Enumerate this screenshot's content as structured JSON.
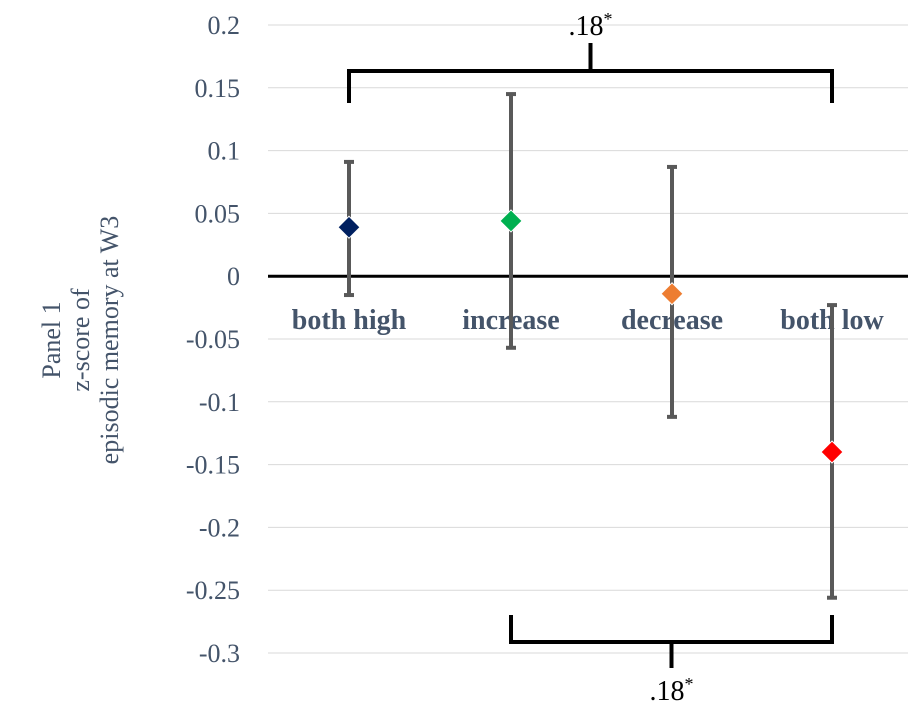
{
  "chart_data": {
    "type": "scatter",
    "ylabel_lines": [
      "Panel 1",
      "z-score of",
      "episodic memory at W3"
    ],
    "ylim": [
      -0.3,
      0.2
    ],
    "yticks": [
      0.2,
      0.15,
      0.1,
      0.05,
      0,
      -0.05,
      -0.1,
      -0.15,
      -0.2,
      -0.25,
      -0.3
    ],
    "ytick_labels": [
      "0.2",
      "0.15",
      "0.1",
      "0.05",
      "0",
      "-0.05",
      "-0.1",
      "-0.15",
      "-0.2",
      "-0.25",
      "-0.3"
    ],
    "grid": true,
    "categories": [
      "both high",
      "increase",
      "decrease",
      "both low"
    ],
    "points": [
      {
        "category": "both high",
        "value": 0.039,
        "lower": -0.015,
        "upper": 0.091,
        "color": "#002060"
      },
      {
        "category": "increase",
        "value": 0.044,
        "lower": -0.057,
        "upper": 0.145,
        "color": "#00b050"
      },
      {
        "category": "decrease",
        "value": -0.014,
        "lower": -0.112,
        "upper": 0.087,
        "color": "#ed7d31"
      },
      {
        "category": "both low",
        "value": -0.14,
        "lower": -0.256,
        "upper": -0.023,
        "color": "#ff0000"
      }
    ],
    "brackets": [
      {
        "from": "both high",
        "to": "both low",
        "label": ".18*",
        "position": "top"
      },
      {
        "from": "increase",
        "to": "both low",
        "label": ".18*",
        "position": "bottom"
      }
    ]
  }
}
